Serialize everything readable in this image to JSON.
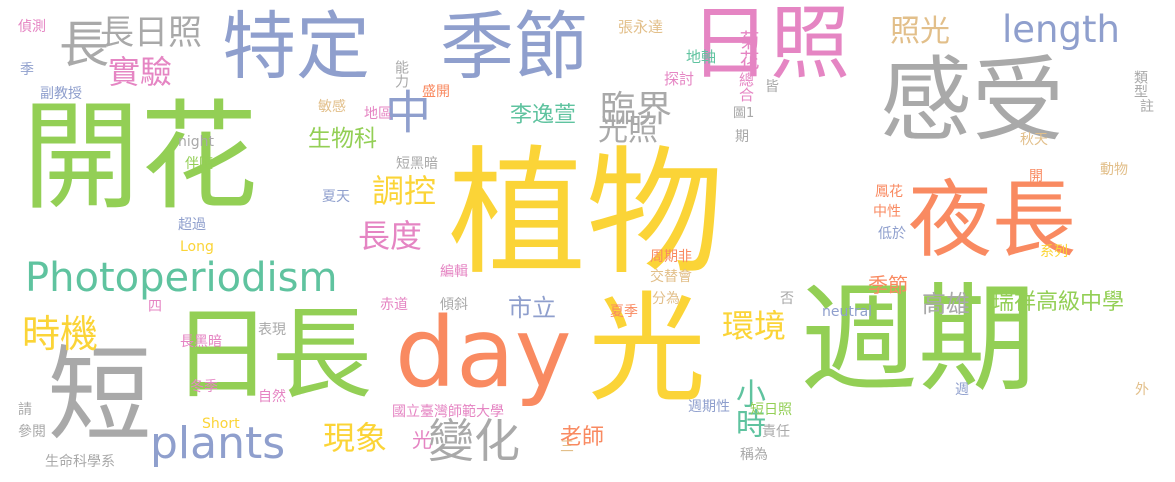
{
  "palette": {
    "green": "#93cf55",
    "yellow": "#fbd437",
    "orange": "#f98a61",
    "blue": "#8f9fcd",
    "grey": "#a9a9a9",
    "pink": "#e585c3",
    "teal": "#5fc39f",
    "tan": "#e2bf8a"
  },
  "words": [
    {
      "text": "植物",
      "color": "yellow"
    },
    {
      "text": "開花",
      "color": "green"
    },
    {
      "text": "光",
      "color": "yellow"
    },
    {
      "text": "週期",
      "color": "green"
    },
    {
      "text": "感受",
      "color": "grey"
    },
    {
      "text": "日長",
      "color": "green"
    },
    {
      "text": "短",
      "color": "grey"
    },
    {
      "text": "day",
      "color": "orange"
    },
    {
      "text": "夜長",
      "color": "orange"
    },
    {
      "text": "日照",
      "color": "pink"
    },
    {
      "text": "季節",
      "color": "blue"
    },
    {
      "text": "特定",
      "color": "blue"
    },
    {
      "text": "Photoperiodism",
      "color": "teal"
    },
    {
      "text": "plants",
      "color": "blue"
    },
    {
      "text": "length",
      "color": "blue"
    },
    {
      "text": "長",
      "color": "grey"
    },
    {
      "text": "長日照",
      "color": "grey"
    },
    {
      "text": "實驗",
      "color": "pink"
    },
    {
      "text": "中",
      "color": "blue"
    },
    {
      "text": "臨界",
      "color": "grey"
    },
    {
      "text": "照光",
      "color": "tan"
    },
    {
      "text": "光照",
      "color": "grey"
    },
    {
      "text": "時機",
      "color": "yellow"
    },
    {
      "text": "調控",
      "color": "yellow"
    },
    {
      "text": "長度",
      "color": "pink"
    },
    {
      "text": "環境",
      "color": "yellow"
    },
    {
      "text": "變化",
      "color": "grey"
    },
    {
      "text": "現象",
      "color": "yellow"
    },
    {
      "text": "小時",
      "color": "teal"
    },
    {
      "text": "李逸萱",
      "color": "teal"
    },
    {
      "text": "生物科",
      "color": "green"
    },
    {
      "text": "市立",
      "color": "blue"
    },
    {
      "text": "季節",
      "color": "orange"
    },
    {
      "text": "高雄",
      "color": "grey"
    },
    {
      "text": "瑞祥高級中學",
      "color": "green"
    },
    {
      "text": "老師",
      "color": "orange"
    },
    {
      "text": "光",
      "color": "pink"
    },
    {
      "text": "菊花",
      "color": "pink"
    },
    {
      "text": "總合",
      "color": "pink"
    },
    {
      "text": "地軸",
      "color": "teal"
    },
    {
      "text": "探討",
      "color": "pink"
    },
    {
      "text": "張永達",
      "color": "tan"
    },
    {
      "text": "能力",
      "color": "grey"
    },
    {
      "text": "盛開",
      "color": "orange"
    },
    {
      "text": "敏感",
      "color": "tan"
    },
    {
      "text": "地區",
      "color": "pink"
    },
    {
      "text": "night",
      "color": "grey"
    },
    {
      "text": "伴隨",
      "color": "green"
    },
    {
      "text": "短黑暗",
      "color": "grey"
    },
    {
      "text": "夏天",
      "color": "blue"
    },
    {
      "text": "超過",
      "color": "blue"
    },
    {
      "text": "Long",
      "color": "yellow"
    },
    {
      "text": "偵測",
      "color": "pink"
    },
    {
      "text": "季",
      "color": "blue"
    },
    {
      "text": "副教授",
      "color": "blue"
    },
    {
      "text": "類型",
      "color": "grey"
    },
    {
      "text": "註",
      "color": "grey"
    },
    {
      "text": "秋天",
      "color": "tan"
    },
    {
      "text": "動物",
      "color": "tan"
    },
    {
      "text": "開",
      "color": "orange"
    },
    {
      "text": "皆",
      "color": "grey"
    },
    {
      "text": "圖1",
      "color": "grey"
    },
    {
      "text": "期",
      "color": "grey"
    },
    {
      "text": "鳳花",
      "color": "orange"
    },
    {
      "text": "中性",
      "color": "orange"
    },
    {
      "text": "低於",
      "color": "blue"
    },
    {
      "text": "周期非",
      "color": "orange"
    },
    {
      "text": "交替會",
      "color": "tan"
    },
    {
      "text": "分為",
      "color": "tan"
    },
    {
      "text": "系列",
      "color": "yellow"
    },
    {
      "text": "編輯",
      "color": "pink"
    },
    {
      "text": "傾斜",
      "color": "grey"
    },
    {
      "text": "夏季",
      "color": "orange"
    },
    {
      "text": "否",
      "color": "grey"
    },
    {
      "text": "neutral",
      "color": "blue"
    },
    {
      "text": "赤道",
      "color": "pink"
    },
    {
      "text": "四",
      "color": "pink"
    },
    {
      "text": "表現",
      "color": "grey"
    },
    {
      "text": "長黑暗",
      "color": "pink"
    },
    {
      "text": "冬季",
      "color": "pink"
    },
    {
      "text": "自然",
      "color": "pink"
    },
    {
      "text": "Short",
      "color": "yellow"
    },
    {
      "text": "國立臺灣師範大學",
      "color": "pink"
    },
    {
      "text": "三",
      "color": "tan"
    },
    {
      "text": "週期性",
      "color": "blue"
    },
    {
      "text": "短日照",
      "color": "green"
    },
    {
      "text": "責任",
      "color": "grey"
    },
    {
      "text": "稱為",
      "color": "grey"
    },
    {
      "text": "週",
      "color": "blue"
    },
    {
      "text": "外",
      "color": "tan"
    },
    {
      "text": "請",
      "color": "grey"
    },
    {
      "text": "參閱",
      "color": "grey"
    },
    {
      "text": "生命科學系",
      "color": "grey"
    }
  ]
}
